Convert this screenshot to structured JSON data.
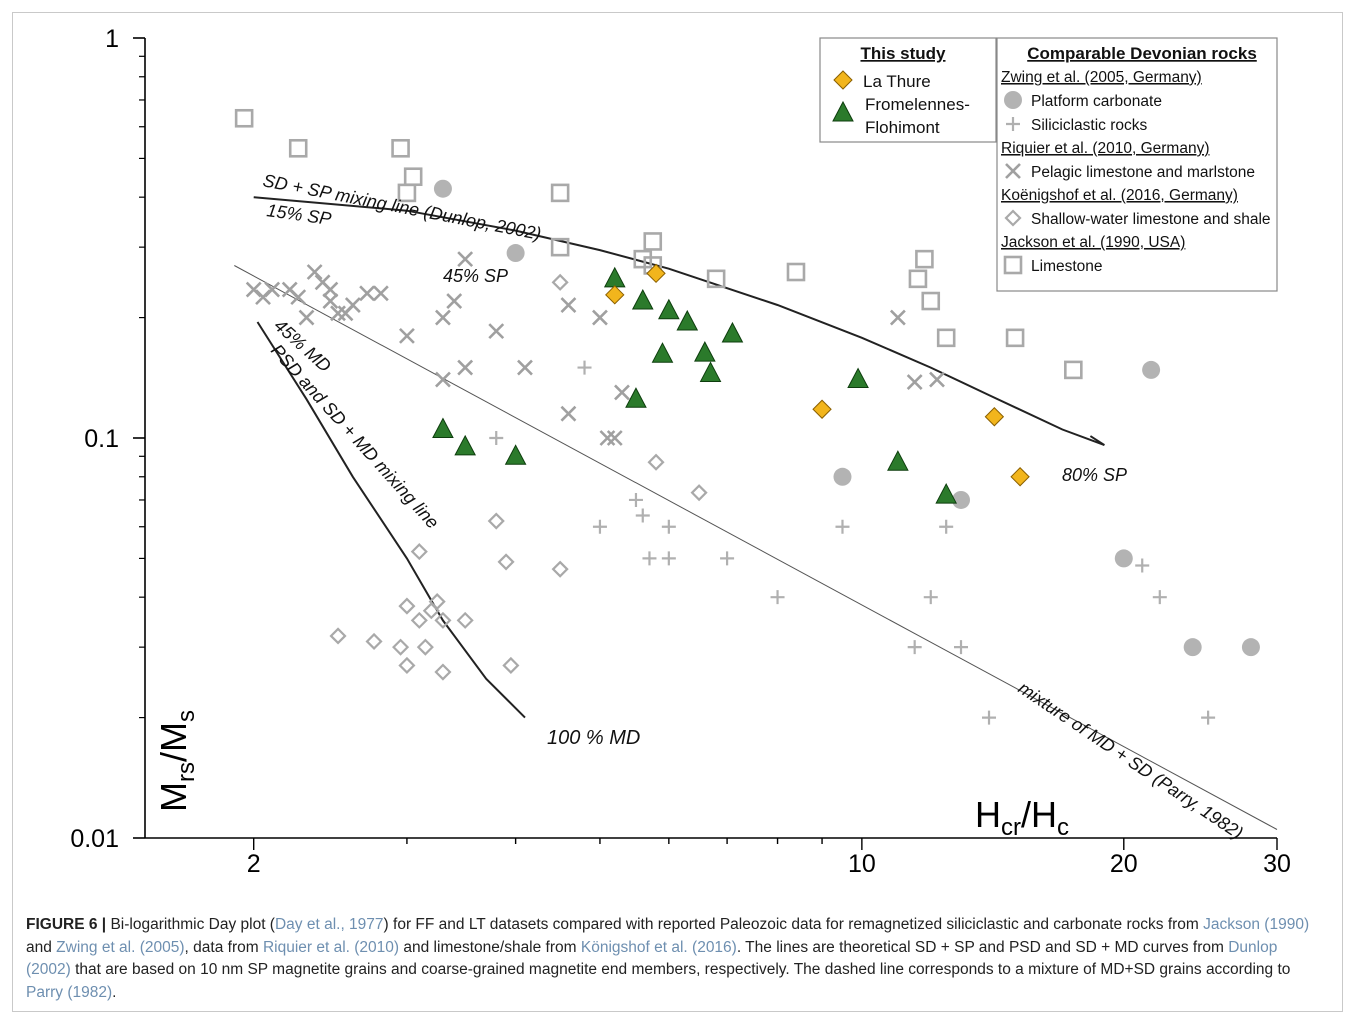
{
  "figure_label": "FIGURE 6 |",
  "caption": {
    "p1": " Bi-logarithmic Day plot (",
    "ref1": "Day et al., 1977",
    "p2": ") for FF and LT datasets compared with reported Paleozoic data for remagnetized siliciclastic and carbonate rocks from ",
    "ref2": "Jackson (1990)",
    "p3": " and ",
    "ref3": "Zwing et al. (2005)",
    "p4": ", data from ",
    "ref4": "Riquier et al. (2010)",
    "p5": " and limestone/shale from ",
    "ref5": "Königshof et al. (2016)",
    "p6": ". The lines are theoretical SD + SP and PSD and SD + MD curves from ",
    "ref6": "Dunlop (2002)",
    "p7": " that are based on 10 nm SP magnetite grains and coarse-grained magnetite end members, respectively. The dashed line corresponds to a mixture of MD+SD grains according to ",
    "ref7": "Parry (1982)",
    "p8": "."
  },
  "colors": {
    "la_thure": "#f2b51c",
    "fromelennes": "#2b7a2b",
    "gray_marker": "#a9a9a9",
    "curve": "#222222",
    "thin_line": "#555555"
  },
  "chart_data": {
    "type": "scatter",
    "x_scale": "log",
    "y_scale": "log",
    "xlim": [
      1.5,
      30
    ],
    "ylim": [
      0.01,
      1
    ],
    "x_ticks": [
      {
        "value": 2,
        "label": "2"
      },
      {
        "value": 10,
        "label": "10"
      },
      {
        "value": 20,
        "label": "20"
      },
      {
        "value": 30,
        "label": "30"
      }
    ],
    "y_ticks": [
      {
        "value": 1,
        "label": "1"
      },
      {
        "value": 0.1,
        "label": "0.1"
      },
      {
        "value": 0.01,
        "label": "0.01"
      }
    ],
    "xlabel_main": "H",
    "xlabel_sub": "cr",
    "xlabel_slash": "/H",
    "xlabel_sub2": "c",
    "ylabel_main": "M",
    "ylabel_sub": "rs",
    "ylabel_slash": "/M",
    "ylabel_sub2": "s",
    "legend_this_study": {
      "title": "This study",
      "items": [
        {
          "marker": "diamond-filled",
          "label": "La Thure"
        },
        {
          "marker": "triangle-filled",
          "label_line1": "Fromelennes-",
          "label_line2": "Flohimont"
        }
      ]
    },
    "legend_comparable": {
      "title": "Comparable Devonian rocks",
      "groups": [
        {
          "source": "Zwing et al. (2005, Germany)",
          "items": [
            {
              "marker": "circle",
              "label": "Platform carbonate"
            },
            {
              "marker": "plus",
              "label": "Siliciclastic rocks"
            }
          ]
        },
        {
          "source": "Riquier et al. (2010, Germany)",
          "items": [
            {
              "marker": "cross",
              "label": "Pelagic limestone and marlstone"
            }
          ]
        },
        {
          "source": "Koënigshof et al. (2016, Germany)",
          "items": [
            {
              "marker": "diamond-open",
              "label": "Shallow-water limestone and shale"
            }
          ]
        },
        {
          "source": "Jackson et al. (1990, USA)",
          "items": [
            {
              "marker": "square-open",
              "label": "Limestone"
            }
          ]
        }
      ]
    },
    "curve_labels": {
      "sdsp": "SD + SP mixing line (Dunlop, 2002)",
      "sp15": "15% SP",
      "sp45": "45% SP",
      "sp80": "80% SP",
      "md45": "45% MD",
      "psd": "PSD and SD + MD mixing line",
      "md100": "100 % MD",
      "parry": "mixture of MD + SD (Parry, 1982)"
    },
    "curves": {
      "sdsp": [
        [
          2,
          0.4
        ],
        [
          3,
          0.37
        ],
        [
          4,
          0.33
        ],
        [
          5,
          0.295
        ],
        [
          6,
          0.265
        ],
        [
          8,
          0.215
        ],
        [
          10,
          0.178
        ],
        [
          12,
          0.15
        ],
        [
          14,
          0.128
        ],
        [
          17,
          0.105
        ],
        [
          19,
          0.096
        ]
      ],
      "psd": [
        [
          2.02,
          0.195
        ],
        [
          2.3,
          0.125
        ],
        [
          2.6,
          0.08
        ],
        [
          3.0,
          0.05
        ],
        [
          3.3,
          0.035
        ],
        [
          3.7,
          0.025
        ],
        [
          4.1,
          0.02
        ]
      ],
      "parry": [
        [
          1.9,
          0.27
        ],
        [
          30,
          0.0105
        ]
      ]
    },
    "series": [
      {
        "name": "La Thure",
        "marker": "diamond-filled",
        "points": [
          [
            5.2,
            0.228
          ],
          [
            5.8,
            0.258
          ],
          [
            9.0,
            0.118
          ],
          [
            14.2,
            0.113
          ],
          [
            15.2,
            0.08
          ]
        ]
      },
      {
        "name": "Fromelennes-Flohimont",
        "marker": "triangle-filled",
        "points": [
          [
            5.2,
            0.25
          ],
          [
            5.6,
            0.22
          ],
          [
            6.0,
            0.208
          ],
          [
            6.3,
            0.195
          ],
          [
            7.1,
            0.182
          ],
          [
            5.9,
            0.162
          ],
          [
            6.6,
            0.163
          ],
          [
            6.7,
            0.145
          ],
          [
            5.5,
            0.125
          ],
          [
            9.9,
            0.14
          ],
          [
            3.3,
            0.105
          ],
          [
            3.5,
            0.095
          ],
          [
            4.0,
            0.09
          ],
          [
            11.0,
            0.087
          ],
          [
            12.5,
            0.072
          ]
        ]
      },
      {
        "name": "Platform carbonate",
        "marker": "circle",
        "points": [
          [
            3.3,
            0.42
          ],
          [
            4.0,
            0.29
          ],
          [
            9.5,
            0.08
          ],
          [
            13.0,
            0.07
          ],
          [
            21.5,
            0.148
          ],
          [
            20.0,
            0.05
          ],
          [
            24.0,
            0.03
          ],
          [
            28.0,
            0.03
          ]
        ]
      },
      {
        "name": "Siliciclastic rocks",
        "marker": "plus",
        "points": [
          [
            3.8,
            0.1
          ],
          [
            4.8,
            0.15
          ],
          [
            5.5,
            0.07
          ],
          [
            5.6,
            0.064
          ],
          [
            6.0,
            0.06
          ],
          [
            5.0,
            0.06
          ],
          [
            5.7,
            0.05
          ],
          [
            6.0,
            0.05
          ],
          [
            7.0,
            0.05
          ],
          [
            9.5,
            0.06
          ],
          [
            12.5,
            0.06
          ],
          [
            8.0,
            0.04
          ],
          [
            12.0,
            0.04
          ],
          [
            11.5,
            0.03
          ],
          [
            13.0,
            0.03
          ],
          [
            14.0,
            0.02
          ],
          [
            21.0,
            0.048
          ],
          [
            22.0,
            0.04
          ],
          [
            25.0,
            0.02
          ]
        ]
      },
      {
        "name": "Pelagic limestone and marlstone",
        "marker": "cross",
        "points": [
          [
            2.0,
            0.235
          ],
          [
            2.05,
            0.225
          ],
          [
            2.1,
            0.235
          ],
          [
            2.2,
            0.235
          ],
          [
            2.25,
            0.225
          ],
          [
            2.3,
            0.2
          ],
          [
            2.35,
            0.26
          ],
          [
            2.4,
            0.245
          ],
          [
            2.45,
            0.22
          ],
          [
            2.5,
            0.205
          ],
          [
            2.55,
            0.205
          ],
          [
            2.6,
            0.215
          ],
          [
            2.7,
            0.23
          ],
          [
            2.8,
            0.23
          ],
          [
            2.45,
            0.235
          ],
          [
            3.0,
            0.18
          ],
          [
            3.3,
            0.2
          ],
          [
            3.4,
            0.22
          ],
          [
            3.5,
            0.28
          ],
          [
            3.3,
            0.14
          ],
          [
            3.5,
            0.15
          ],
          [
            3.8,
            0.185
          ],
          [
            4.1,
            0.15
          ],
          [
            4.6,
            0.215
          ],
          [
            5.0,
            0.2
          ],
          [
            5.3,
            0.13
          ],
          [
            4.6,
            0.115
          ],
          [
            5.1,
            0.1
          ],
          [
            5.2,
            0.1
          ],
          [
            11.0,
            0.2
          ],
          [
            11.5,
            0.138
          ],
          [
            12.2,
            0.14
          ]
        ]
      },
      {
        "name": "Shallow-water limestone and shale",
        "marker": "diamond-open",
        "points": [
          [
            4.5,
            0.245
          ],
          [
            5.8,
            0.087
          ],
          [
            6.5,
            0.073
          ],
          [
            3.8,
            0.062
          ],
          [
            3.1,
            0.052
          ],
          [
            3.9,
            0.049
          ],
          [
            4.5,
            0.047
          ],
          [
            3.0,
            0.038
          ],
          [
            3.1,
            0.035
          ],
          [
            3.2,
            0.037
          ],
          [
            3.25,
            0.039
          ],
          [
            3.3,
            0.035
          ],
          [
            3.5,
            0.035
          ],
          [
            3.15,
            0.03
          ],
          [
            3.3,
            0.026
          ],
          [
            2.5,
            0.032
          ],
          [
            2.75,
            0.031
          ],
          [
            2.95,
            0.03
          ],
          [
            3.0,
            0.027
          ],
          [
            3.95,
            0.027
          ]
        ]
      },
      {
        "name": "Limestone",
        "marker": "square-open",
        "points": [
          [
            1.95,
            0.63
          ],
          [
            2.25,
            0.53
          ],
          [
            2.95,
            0.53
          ],
          [
            3.05,
            0.45
          ],
          [
            3.0,
            0.41
          ],
          [
            4.5,
            0.41
          ],
          [
            4.5,
            0.3
          ],
          [
            5.6,
            0.28
          ],
          [
            5.75,
            0.31
          ],
          [
            5.75,
            0.27
          ],
          [
            6.8,
            0.25
          ],
          [
            8.4,
            0.26
          ],
          [
            11.8,
            0.28
          ],
          [
            11.6,
            0.25
          ],
          [
            12.0,
            0.22
          ],
          [
            12.5,
            0.178
          ],
          [
            15.0,
            0.178
          ],
          [
            17.5,
            0.148
          ]
        ]
      }
    ]
  }
}
